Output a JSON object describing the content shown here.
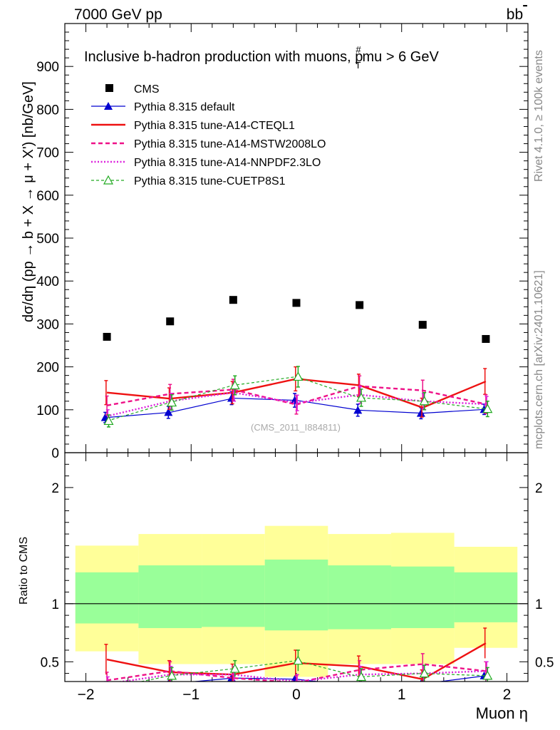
{
  "header": {
    "energy_label": "7000 GeV pp",
    "process_label": "bb̅",
    "rivet_label": "Rivet 4.1.0, ≥ 100k events",
    "site_label": "mcplots.cern.ch [arXiv:2401.10621]",
    "analysis_label": "(CMS_2011_I884811)"
  },
  "chart_data": [
    {
      "type": "scatter",
      "title": "Inclusive b-hadron production with muons, p_T^mu > 6 GeV",
      "title_main": "Inclusive b-hadron production with muons, p",
      "title_sup": "#",
      "title_sub": "T",
      "title_tail": "mu > 6 GeV",
      "ylabel": "dσ/dη (pp → b + X → μ + X') [nb/GeV]",
      "xlim": [
        -2.2,
        2.2
      ],
      "ylim": [
        0,
        1000
      ],
      "yticks": [
        0,
        100,
        200,
        300,
        400,
        500,
        600,
        700,
        800,
        900
      ],
      "ytick_labels": [
        "0",
        "100",
        "200",
        "300",
        "400",
        "500",
        "600",
        "700",
        "800",
        "900"
      ],
      "x": [
        -1.8,
        -1.2,
        -0.6,
        0.0,
        0.6,
        1.2,
        1.8
      ],
      "x_bins": [
        -2.1,
        -1.5,
        -0.9,
        -0.3,
        0.3,
        0.9,
        1.5,
        2.1
      ],
      "legend": [
        "CMS",
        "Pythia 8.315 default",
        "Pythia 8.315 tune-A14-CTEQL1",
        "Pythia 8.315 tune-A14-MSTW2008LO",
        "Pythia 8.315 tune-A14-NNPDF2.3LO",
        "Pythia 8.315 tune-CUETP8S1"
      ],
      "series": [
        {
          "name": "CMS",
          "color": "#000000",
          "values": [
            270,
            306,
            356,
            349,
            344,
            298,
            265
          ]
        },
        {
          "name": "Pythia 8.315 default",
          "color": "#0000d0",
          "values": [
            82,
            94,
            127,
            122,
            99,
            92,
            101
          ],
          "errors": [
            12,
            14,
            15,
            16,
            14,
            13,
            12
          ]
        },
        {
          "name": "Pythia 8.315 tune-A14-CTEQL1",
          "color": "#ee1111",
          "values": [
            140,
            126,
            140,
            172,
            157,
            105,
            166
          ],
          "errors": [
            28,
            25,
            26,
            28,
            26,
            22,
            30
          ]
        },
        {
          "name": "Pythia 8.315 tune-A14-MSTW2008LO",
          "color": "#ee1188",
          "values": [
            110,
            137,
            147,
            112,
            155,
            145,
            113
          ],
          "errors": [
            22,
            22,
            24,
            22,
            24,
            24,
            22
          ]
        },
        {
          "name": "Pythia 8.315 tune-A14-NNPDF2.3LO",
          "color": "#dd22dd",
          "values": [
            85,
            120,
            140,
            116,
            135,
            120,
            113
          ],
          "errors": [
            15,
            18,
            20,
            18,
            20,
            18,
            18
          ]
        },
        {
          "name": "Pythia 8.315 tune-CUETP8S1",
          "color": "#22aa22",
          "values": [
            74,
            117,
            157,
            177,
            128,
            120,
            102
          ],
          "errors": [
            14,
            18,
            22,
            24,
            20,
            20,
            18
          ]
        }
      ]
    },
    {
      "type": "line",
      "ylabel": "Ratio to CMS",
      "xlabel": "Muon η",
      "xlim": [
        -2.2,
        2.2
      ],
      "ylim": [
        0.33,
        2.3
      ],
      "yticks": [
        0.5,
        1,
        2
      ],
      "ytick_labels": [
        "0.5",
        "1",
        "2"
      ],
      "xticks": [
        -2,
        -1,
        0,
        1,
        2
      ],
      "xtick_labels": [
        "−2",
        "−1",
        "0",
        "1",
        "2"
      ],
      "x_bins": [
        -2.1,
        -1.5,
        -0.9,
        -0.3,
        0.3,
        0.9,
        1.5,
        2.1
      ],
      "band_inner": [
        [
          0.83,
          1.27
        ],
        [
          0.79,
          1.33
        ],
        [
          0.8,
          1.33
        ],
        [
          0.77,
          1.38
        ],
        [
          0.78,
          1.33
        ],
        [
          0.79,
          1.32
        ],
        [
          0.84,
          1.27
        ]
      ],
      "band_outer": [
        [
          0.59,
          1.5
        ],
        [
          0.48,
          1.6
        ],
        [
          0.48,
          1.6
        ],
        [
          0.37,
          1.67
        ],
        [
          0.48,
          1.6
        ],
        [
          0.48,
          1.61
        ],
        [
          0.62,
          1.49
        ]
      ],
      "x": [
        -1.8,
        -1.2,
        -0.6,
        0.0,
        0.6,
        1.2,
        1.8
      ],
      "series": [
        {
          "name": "Pythia 8.315 default",
          "color": "#0000d0",
          "values": [
            0.3,
            0.31,
            0.36,
            0.35,
            0.29,
            0.31,
            0.38
          ]
        },
        {
          "name": "Pythia 8.315 tune-A14-CTEQL1",
          "color": "#ee1111",
          "values": [
            0.52,
            0.41,
            0.39,
            0.49,
            0.46,
            0.35,
            0.66
          ],
          "errors": [
            0.13,
            0.1,
            0.09,
            0.11,
            0.09,
            0.08,
            0.13
          ]
        },
        {
          "name": "Pythia 8.315 tune-A14-MSTW2008LO",
          "color": "#ee1188",
          "values": [
            0.34,
            0.42,
            0.36,
            0.32,
            0.43,
            0.48,
            0.42
          ],
          "errors": [
            0.07,
            0.08,
            0.07,
            0.06,
            0.08,
            0.09,
            0.08
          ]
        },
        {
          "name": "Pythia 8.315 tune-A14-NNPDF2.3LO",
          "color": "#dd22dd",
          "values": [
            0.31,
            0.39,
            0.39,
            0.33,
            0.39,
            0.4,
            0.42
          ],
          "errors": [
            0.06,
            0.07,
            0.07,
            0.06,
            0.07,
            0.07,
            0.08
          ]
        },
        {
          "name": "Pythia 8.315 tune-CUETP8S1",
          "color": "#22aa22",
          "values": [
            0.27,
            0.38,
            0.44,
            0.51,
            0.37,
            0.4,
            0.38
          ],
          "errors": [
            0.05,
            0.07,
            0.07,
            0.09,
            0.07,
            0.07,
            0.07
          ]
        }
      ]
    }
  ]
}
